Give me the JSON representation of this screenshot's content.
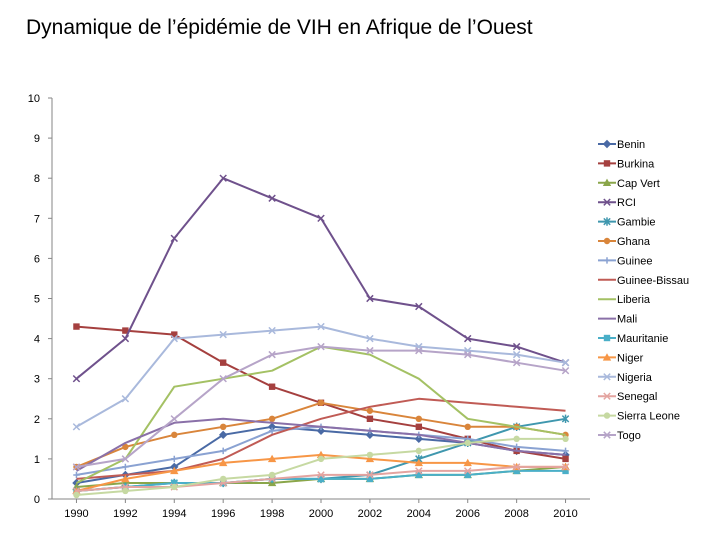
{
  "title": "Dynamique de l’épidémie de VIH en Afrique de l’Ouest",
  "chart_data": {
    "type": "line",
    "title": "Dynamique de l’épidémie de VIH en Afrique de l’Ouest",
    "xlabel": "",
    "ylabel": "",
    "x": [
      1990,
      1992,
      1994,
      1996,
      1998,
      2000,
      2002,
      2004,
      2006,
      2008,
      2010
    ],
    "xticks": [
      "1990",
      "1992",
      "1994",
      "1996",
      "1998",
      "2000",
      "2002",
      "2004",
      "2006",
      "2008",
      "2010"
    ],
    "yticks": [
      "0",
      "1",
      "2",
      "3",
      "4",
      "5",
      "6",
      "7",
      "8",
      "9",
      "10"
    ],
    "xlim": [
      1989,
      2011
    ],
    "ylim": [
      0,
      10
    ],
    "legend_position": "right",
    "series": [
      {
        "name": "Benin",
        "color": "#4a6aa5",
        "marker": "diamond",
        "values": [
          0.4,
          0.6,
          0.8,
          1.6,
          1.8,
          1.7,
          1.6,
          1.5,
          1.4,
          1.2,
          1.1
        ]
      },
      {
        "name": "Burkina",
        "color": "#a5403f",
        "marker": "square",
        "values": [
          4.3,
          4.2,
          4.1,
          3.4,
          2.8,
          2.4,
          2.0,
          1.8,
          1.5,
          1.2,
          1.0
        ]
      },
      {
        "name": "Cap Vert",
        "color": "#8aa64a",
        "marker": "triangle",
        "values": [
          0.3,
          0.4,
          0.4,
          0.4,
          0.4,
          0.5,
          0.5,
          0.6,
          0.6,
          0.7,
          0.8
        ]
      },
      {
        "name": "RCI",
        "color": "#6f518c",
        "marker": "x",
        "values": [
          3.0,
          4.0,
          6.5,
          8.0,
          7.5,
          7.0,
          5.0,
          4.8,
          4.0,
          3.8,
          3.4
        ]
      },
      {
        "name": "Gambie",
        "color": "#3f97ae",
        "marker": "star",
        "values": [
          0.2,
          0.3,
          0.4,
          0.4,
          0.5,
          0.5,
          0.6,
          1.0,
          1.4,
          1.8,
          2.0
        ]
      },
      {
        "name": "Ghana",
        "color": "#d9853b",
        "marker": "circle",
        "values": [
          0.8,
          1.3,
          1.6,
          1.8,
          2.0,
          2.4,
          2.2,
          2.0,
          1.8,
          1.8,
          1.6
        ]
      },
      {
        "name": "Guinee",
        "color": "#8aa2d2",
        "marker": "plus",
        "values": [
          0.6,
          0.8,
          1.0,
          1.2,
          1.7,
          1.8,
          1.7,
          1.6,
          1.5,
          1.3,
          1.2
        ]
      },
      {
        "name": "Guinee-Bissau",
        "color": "#c05b55",
        "marker": "none",
        "values": [
          0.5,
          0.6,
          0.7,
          1.0,
          1.6,
          2.0,
          2.3,
          2.5,
          2.4,
          2.3,
          2.2
        ]
      },
      {
        "name": "Liberia",
        "color": "#a4c164",
        "marker": "none",
        "values": [
          0.4,
          1.0,
          2.8,
          3.0,
          3.2,
          3.8,
          3.6,
          3.0,
          2.0,
          1.8,
          1.6
        ]
      },
      {
        "name": "Mali",
        "color": "#8a70a8",
        "marker": "none",
        "values": [
          0.7,
          1.4,
          1.9,
          2.0,
          1.9,
          1.8,
          1.7,
          1.6,
          1.4,
          1.2,
          1.1
        ]
      },
      {
        "name": "Mauritanie",
        "color": "#4aafc8",
        "marker": "square",
        "values": [
          0.2,
          0.3,
          0.4,
          0.4,
          0.5,
          0.5,
          0.5,
          0.6,
          0.6,
          0.7,
          0.7
        ]
      },
      {
        "name": "Niger",
        "color": "#f79646",
        "marker": "triangle",
        "values": [
          0.2,
          0.5,
          0.7,
          0.9,
          1.0,
          1.1,
          1.0,
          0.9,
          0.9,
          0.8,
          0.8
        ]
      },
      {
        "name": "Nigeria",
        "color": "#a9b9dc",
        "marker": "x",
        "values": [
          1.8,
          2.5,
          4.0,
          4.1,
          4.2,
          4.3,
          4.0,
          3.8,
          3.7,
          3.6,
          3.4
        ]
      },
      {
        "name": "Senegal",
        "color": "#e4a4a0",
        "marker": "x",
        "values": [
          0.2,
          0.3,
          0.3,
          0.4,
          0.5,
          0.6,
          0.6,
          0.7,
          0.7,
          0.8,
          0.8
        ]
      },
      {
        "name": "Sierra Leone",
        "color": "#c6d9a2",
        "marker": "circle",
        "values": [
          0.1,
          0.2,
          0.3,
          0.5,
          0.6,
          1.0,
          1.1,
          1.2,
          1.4,
          1.5,
          1.5
        ]
      },
      {
        "name": "Togo",
        "color": "#b6a4c8",
        "marker": "x",
        "values": [
          0.8,
          1.0,
          2.0,
          3.0,
          3.6,
          3.8,
          3.7,
          3.7,
          3.6,
          3.4,
          3.2
        ]
      }
    ]
  }
}
